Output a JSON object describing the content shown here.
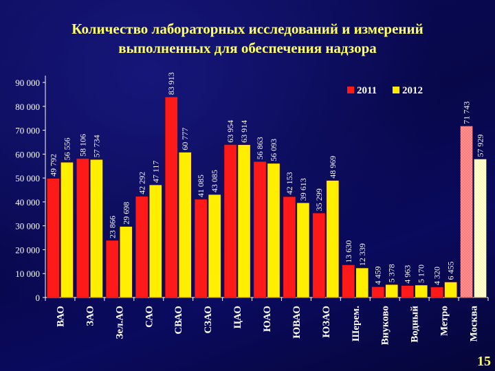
{
  "slide": {
    "title_line1": "Количество лабораторных исследований и измерений",
    "title_line2": "выполненных для обеспечения надзора",
    "page_number": "15"
  },
  "colors": {
    "series_2011": "#ff1a1a",
    "series_2012": "#ffee00",
    "moscow_2011": "#ff9999",
    "moscow_2012": "#ffffcc",
    "text": "#ffffff",
    "title": "#ffff66",
    "background": "#06063a"
  },
  "chart_data": {
    "type": "bar",
    "title": "Количество лабораторных исследований и измерений выполненных для обеспечения надзора",
    "xlabel": "",
    "ylabel": "",
    "ylim": [
      0,
      90000
    ],
    "yticks": [
      "0",
      "10 000",
      "20 000",
      "30 000",
      "40 000",
      "50 000",
      "60 000",
      "70 000",
      "80 000",
      "90 000"
    ],
    "yticks_values": [
      0,
      10000,
      20000,
      30000,
      40000,
      50000,
      60000,
      70000,
      80000,
      90000
    ],
    "grid": false,
    "legend_position": "top-right",
    "categories": [
      "ВАО",
      "ЗАО",
      "Зел.АО",
      "САО",
      "СВАО",
      "СЗАО",
      "ЦАО",
      "ЮАО",
      "ЮВАО",
      "ЮЗАО",
      "Шерем.",
      "Внуково",
      "Водный",
      "Метро",
      "Москва"
    ],
    "series": [
      {
        "name": "2011",
        "values": [
          49792,
          58106,
          23866,
          42292,
          83913,
          41085,
          63954,
          56863,
          42153,
          35299,
          13630,
          4459,
          4963,
          4320,
          71743
        ],
        "labels": [
          "49 792",
          "58 106",
          "23 866",
          "42 292",
          "83 913",
          "41 085",
          "63 954",
          "56 863",
          "42 153",
          "35 299",
          "13 630",
          "4 459",
          "4 963",
          "4 320",
          "71 743"
        ]
      },
      {
        "name": "2012",
        "values": [
          56556,
          57734,
          29698,
          47117,
          60777,
          43085,
          63914,
          56093,
          39613,
          48969,
          12339,
          5378,
          5170,
          6455,
          57929
        ],
        "labels": [
          "56 556",
          "57 734",
          "29 698",
          "47 117",
          "60 777",
          "43 085",
          "63 914",
          "56 093",
          "39 613",
          "48 969",
          "12 339",
          "5 378",
          "5 170",
          "6 455",
          "57 929"
        ]
      }
    ]
  }
}
